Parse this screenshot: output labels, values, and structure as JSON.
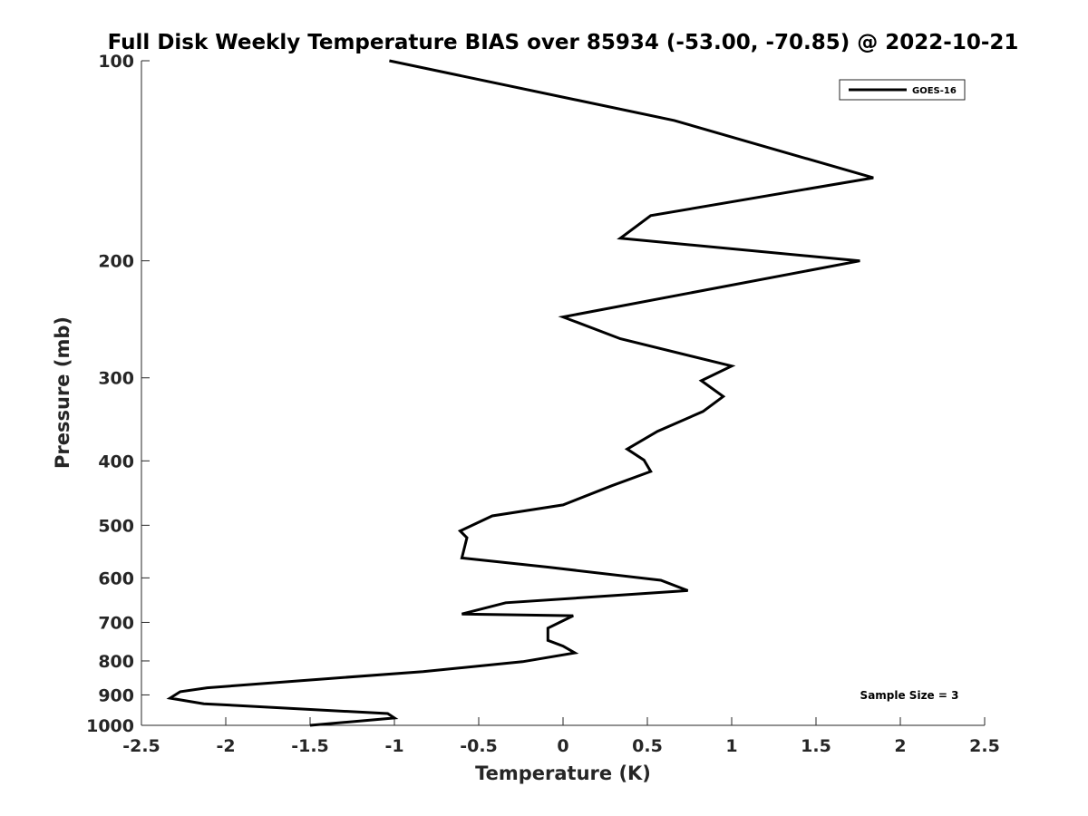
{
  "chart_data": {
    "type": "line",
    "title": "Full Disk Weekly Temperature BIAS over 85934 (-53.00, -70.85) @ 2022-10-21",
    "xlabel": "Temperature (K)",
    "ylabel": "Pressure (mb)",
    "xlim": [
      -2.5,
      2.5
    ],
    "ylim": [
      100,
      1000
    ],
    "y_scale": "log",
    "y_direction": "reversed",
    "x_ticks": [
      -2.5,
      -2,
      -1.5,
      -1,
      -0.5,
      0,
      0.5,
      1,
      1.5,
      2,
      2.5
    ],
    "x_tick_labels": [
      "-2.5",
      "-2",
      "-1.5",
      "-1",
      "-0.5",
      "0",
      "0.5",
      "1",
      "1.5",
      "2",
      "2.5"
    ],
    "y_ticks": [
      100,
      200,
      300,
      400,
      500,
      600,
      700,
      800,
      900,
      1000
    ],
    "y_tick_labels": [
      "100",
      "200",
      "300",
      "400",
      "500",
      "600",
      "700",
      "800",
      "900",
      "1000"
    ],
    "grid": false,
    "legend_position": "top-right",
    "annotation": "Sample Size = 3",
    "annotation_position": "bottom-right",
    "series": [
      {
        "name": "GOES-16",
        "color": "#000000",
        "x": [
          -1.03,
          0.66,
          1.84,
          0.52,
          0.34,
          1.76,
          0.0,
          0.34,
          1.0,
          0.82,
          0.95,
          0.83,
          0.56,
          0.38,
          0.48,
          0.52,
          0.29,
          0.0,
          -0.42,
          -0.61,
          -0.57,
          -0.6,
          -0.09,
          0.58,
          0.74,
          -0.34,
          -0.6,
          0.06,
          -0.09,
          -0.09,
          0.0,
          0.07,
          -0.24,
          -0.83,
          -1.59,
          -2.11,
          -2.27,
          -2.33,
          -2.13,
          -1.04,
          -1.0,
          -1.5
        ],
        "y": [
          100,
          123,
          150,
          171,
          185,
          200,
          243,
          262,
          288,
          303,
          320,
          337,
          361,
          384,
          399,
          415,
          436,
          466,
          484,
          510,
          522,
          560,
          578,
          605,
          627,
          654,
          680,
          684,
          714,
          745,
          760,
          778,
          802,
          830,
          858,
          878,
          890,
          910,
          928,
          960,
          975,
          1000
        ]
      }
    ]
  }
}
